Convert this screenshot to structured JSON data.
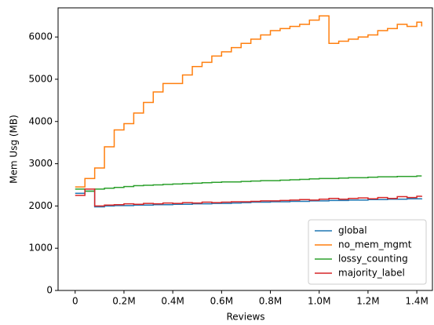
{
  "chart_data": {
    "type": "line",
    "step": "post",
    "x_label": "Reviews",
    "y_label": "Mem Usg (MB)",
    "x": [
      0,
      40000,
      80000,
      120000,
      160000,
      200000,
      240000,
      280000,
      320000,
      360000,
      400000,
      440000,
      480000,
      520000,
      560000,
      600000,
      640000,
      680000,
      720000,
      760000,
      800000,
      840000,
      880000,
      920000,
      960000,
      1000000,
      1040000,
      1080000,
      1120000,
      1160000,
      1200000,
      1240000,
      1280000,
      1320000,
      1360000,
      1400000,
      1420000
    ],
    "series": [
      {
        "name": "global",
        "color": "#1f77b4",
        "values": [
          2300,
          2350,
          1980,
          2000,
          2010,
          2010,
          2020,
          2020,
          2030,
          2030,
          2040,
          2040,
          2050,
          2050,
          2060,
          2060,
          2070,
          2080,
          2090,
          2090,
          2100,
          2100,
          2110,
          2110,
          2120,
          2120,
          2130,
          2130,
          2140,
          2140,
          2150,
          2150,
          2160,
          2160,
          2170,
          2170,
          2180
        ]
      },
      {
        "name": "no_mem_mgmt",
        "color": "#ff7f0e",
        "values": [
          2450,
          2650,
          2900,
          3400,
          3800,
          3950,
          4200,
          4450,
          4700,
          4900,
          4900,
          5100,
          5300,
          5400,
          5550,
          5650,
          5750,
          5850,
          5950,
          6050,
          6150,
          6200,
          6250,
          6300,
          6400,
          6500,
          5850,
          5900,
          5950,
          6000,
          6050,
          6150,
          6200,
          6300,
          6250,
          6350,
          6250
        ]
      },
      {
        "name": "lossy_counting",
        "color": "#2ca02c",
        "values": [
          2400,
          2350,
          2400,
          2420,
          2440,
          2460,
          2480,
          2490,
          2500,
          2510,
          2520,
          2530,
          2540,
          2550,
          2560,
          2570,
          2570,
          2580,
          2590,
          2600,
          2600,
          2610,
          2620,
          2630,
          2640,
          2650,
          2650,
          2660,
          2670,
          2670,
          2680,
          2690,
          2690,
          2700,
          2700,
          2710,
          2710
        ]
      },
      {
        "name": "majority_label",
        "color": "#d62728",
        "values": [
          2250,
          2400,
          2000,
          2020,
          2030,
          2050,
          2040,
          2060,
          2050,
          2070,
          2060,
          2080,
          2070,
          2090,
          2080,
          2090,
          2100,
          2100,
          2110,
          2120,
          2120,
          2130,
          2140,
          2150,
          2140,
          2160,
          2180,
          2160,
          2180,
          2190,
          2170,
          2200,
          2180,
          2220,
          2200,
          2230,
          2240
        ]
      }
    ],
    "xlim": [
      -70000,
      1464000
    ],
    "ylim": [
      0,
      6690
    ],
    "xticks": [
      0,
      {
        "value": 200000,
        "label": "0.2M"
      },
      {
        "value": 400000,
        "label": "0.4M"
      },
      {
        "value": 600000,
        "label": "0.6M"
      },
      {
        "value": 800000,
        "label": "0.8M"
      },
      {
        "value": 1000000,
        "label": "1.0M"
      },
      {
        "value": 1200000,
        "label": "1.2M"
      },
      {
        "value": 1400000,
        "label": "1.4M"
      }
    ],
    "yticks": [
      0,
      1000,
      2000,
      3000,
      4000,
      5000,
      6000
    ],
    "legend": "lower right"
  }
}
